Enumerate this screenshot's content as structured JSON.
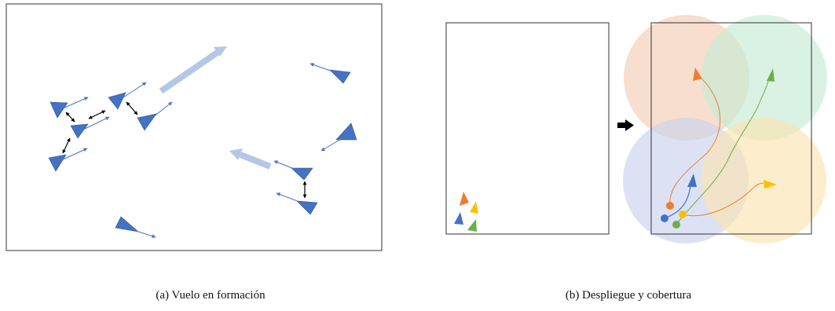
{
  "figure": {
    "captions": {
      "a": "(a)  Vuelo en formación",
      "b": "(b)  Despliegue y cobertura"
    },
    "colors": {
      "drone_fill": "#4472C4",
      "drone_edge": "#2F528F",
      "heading_line": "#4472C4",
      "spacing_arrow": "#000000",
      "flow_arrow": "#B4C7E7",
      "frame": "#333333",
      "agent_orange": "#ED7D31",
      "agent_green": "#70AD47",
      "agent_yellow": "#FFC000",
      "agent_blue": "#4472C4",
      "zone_orange": "#F4CCB4",
      "zone_green": "#C6EBD4",
      "zone_blue": "#C9D3EE",
      "zone_yellow": "#FBE3B2",
      "transition_arrow": "#000000"
    },
    "icons": {
      "drone": "triangle-drone-icon",
      "transition": "right-arrow-icon"
    }
  }
}
